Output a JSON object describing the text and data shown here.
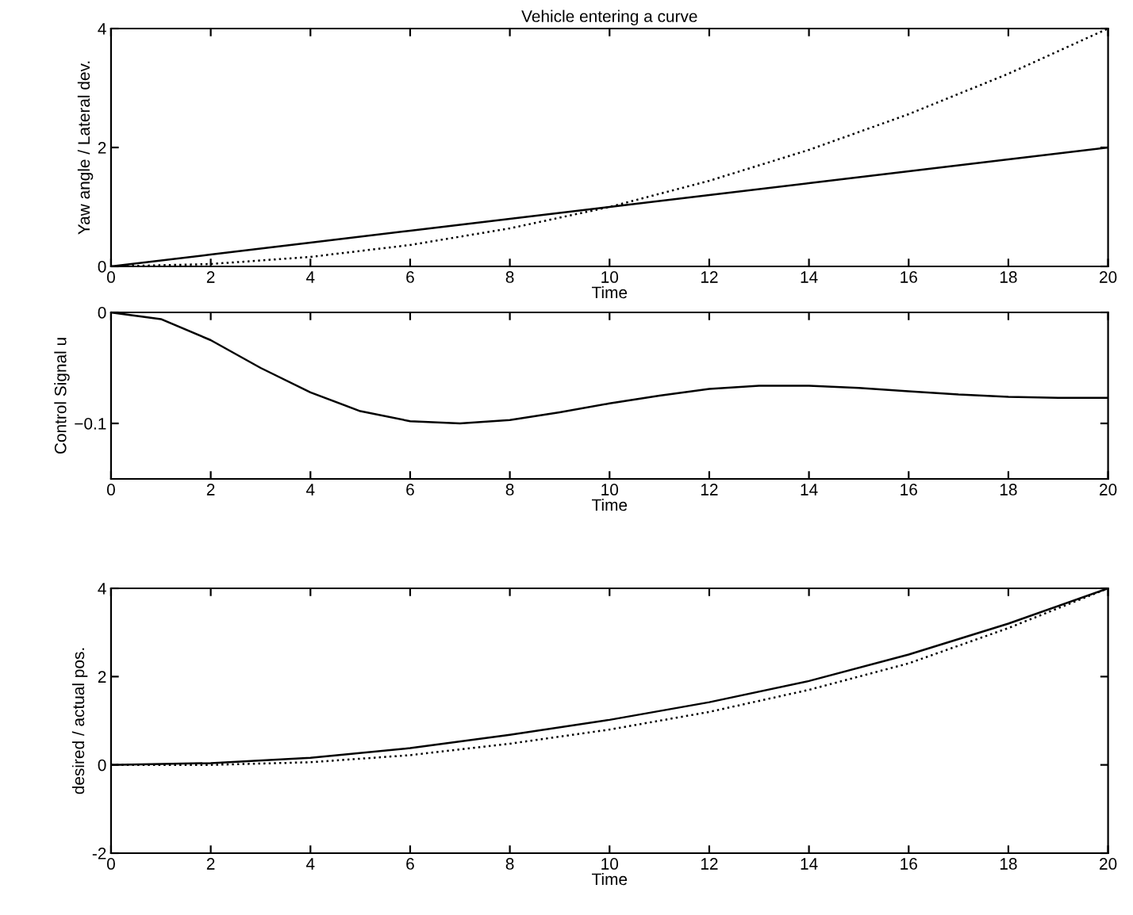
{
  "chart_data": [
    {
      "type": "line",
      "title": "Vehicle entering a curve",
      "xlabel": "Time",
      "ylabel": "Yaw angle / Lateral dev.",
      "x": [
        0,
        2,
        4,
        6,
        8,
        10,
        12,
        14,
        16,
        18,
        20
      ],
      "series": [
        {
          "color": "#000000",
          "line_style": "solid",
          "values": [
            0,
            0.2,
            0.4,
            0.6,
            0.8,
            1.0,
            1.2,
            1.4,
            1.6,
            1.8,
            2.0
          ]
        },
        {
          "color": "#000000",
          "line_style": "dotted",
          "values": [
            0,
            0.04,
            0.16,
            0.36,
            0.64,
            1.0,
            1.44,
            1.96,
            2.56,
            3.24,
            4.0
          ]
        }
      ],
      "xlim": [
        0,
        20
      ],
      "xticks": [
        0,
        2,
        4,
        6,
        8,
        10,
        12,
        14,
        16,
        18,
        20
      ],
      "ylim": [
        0,
        4
      ],
      "yticks": [
        0,
        2,
        4
      ],
      "grid": false,
      "legend": false
    },
    {
      "type": "line",
      "xlabel": "Time",
      "ylabel": "Control Signal u",
      "x": [
        0,
        1,
        2,
        3,
        4,
        5,
        6,
        7,
        8,
        9,
        10,
        11,
        12,
        13,
        14,
        15,
        16,
        17,
        18,
        19,
        20
      ],
      "series": [
        {
          "color": "#000000",
          "line_style": "solid",
          "values": [
            0,
            -0.006,
            -0.025,
            -0.05,
            -0.072,
            -0.089,
            -0.098,
            -0.1,
            -0.097,
            -0.09,
            -0.082,
            -0.075,
            -0.069,
            -0.066,
            -0.066,
            -0.068,
            -0.071,
            -0.074,
            -0.076,
            -0.077,
            -0.077
          ]
        }
      ],
      "xlim": [
        0,
        20
      ],
      "xticks": [
        0,
        2,
        4,
        6,
        8,
        10,
        12,
        14,
        16,
        18,
        20
      ],
      "ylim": [
        -0.15,
        0
      ],
      "yticks": [
        {
          "value": -0.1,
          "label": "−0.1"
        },
        0
      ],
      "grid": false,
      "legend": false
    },
    {
      "type": "line",
      "xlabel": "Time",
      "ylabel": "desired / actual pos.",
      "x": [
        0,
        2,
        4,
        6,
        8,
        10,
        12,
        14,
        16,
        18,
        20
      ],
      "series": [
        {
          "color": "#000000",
          "line_style": "solid",
          "values": [
            0,
            0.04,
            0.16,
            0.38,
            0.68,
            1.02,
            1.42,
            1.9,
            2.5,
            3.2,
            4.0
          ]
        },
        {
          "color": "#000000",
          "line_style": "dotted",
          "values": [
            0,
            0.0,
            0.06,
            0.22,
            0.48,
            0.8,
            1.2,
            1.7,
            2.3,
            3.1,
            4.0
          ]
        }
      ],
      "xlim": [
        0,
        20
      ],
      "xticks": [
        0,
        2,
        4,
        6,
        8,
        10,
        12,
        14,
        16,
        18,
        20
      ],
      "ylim": [
        -2,
        4
      ],
      "yticks": [
        -2,
        0,
        2,
        4
      ],
      "grid": false,
      "legend": false
    }
  ]
}
